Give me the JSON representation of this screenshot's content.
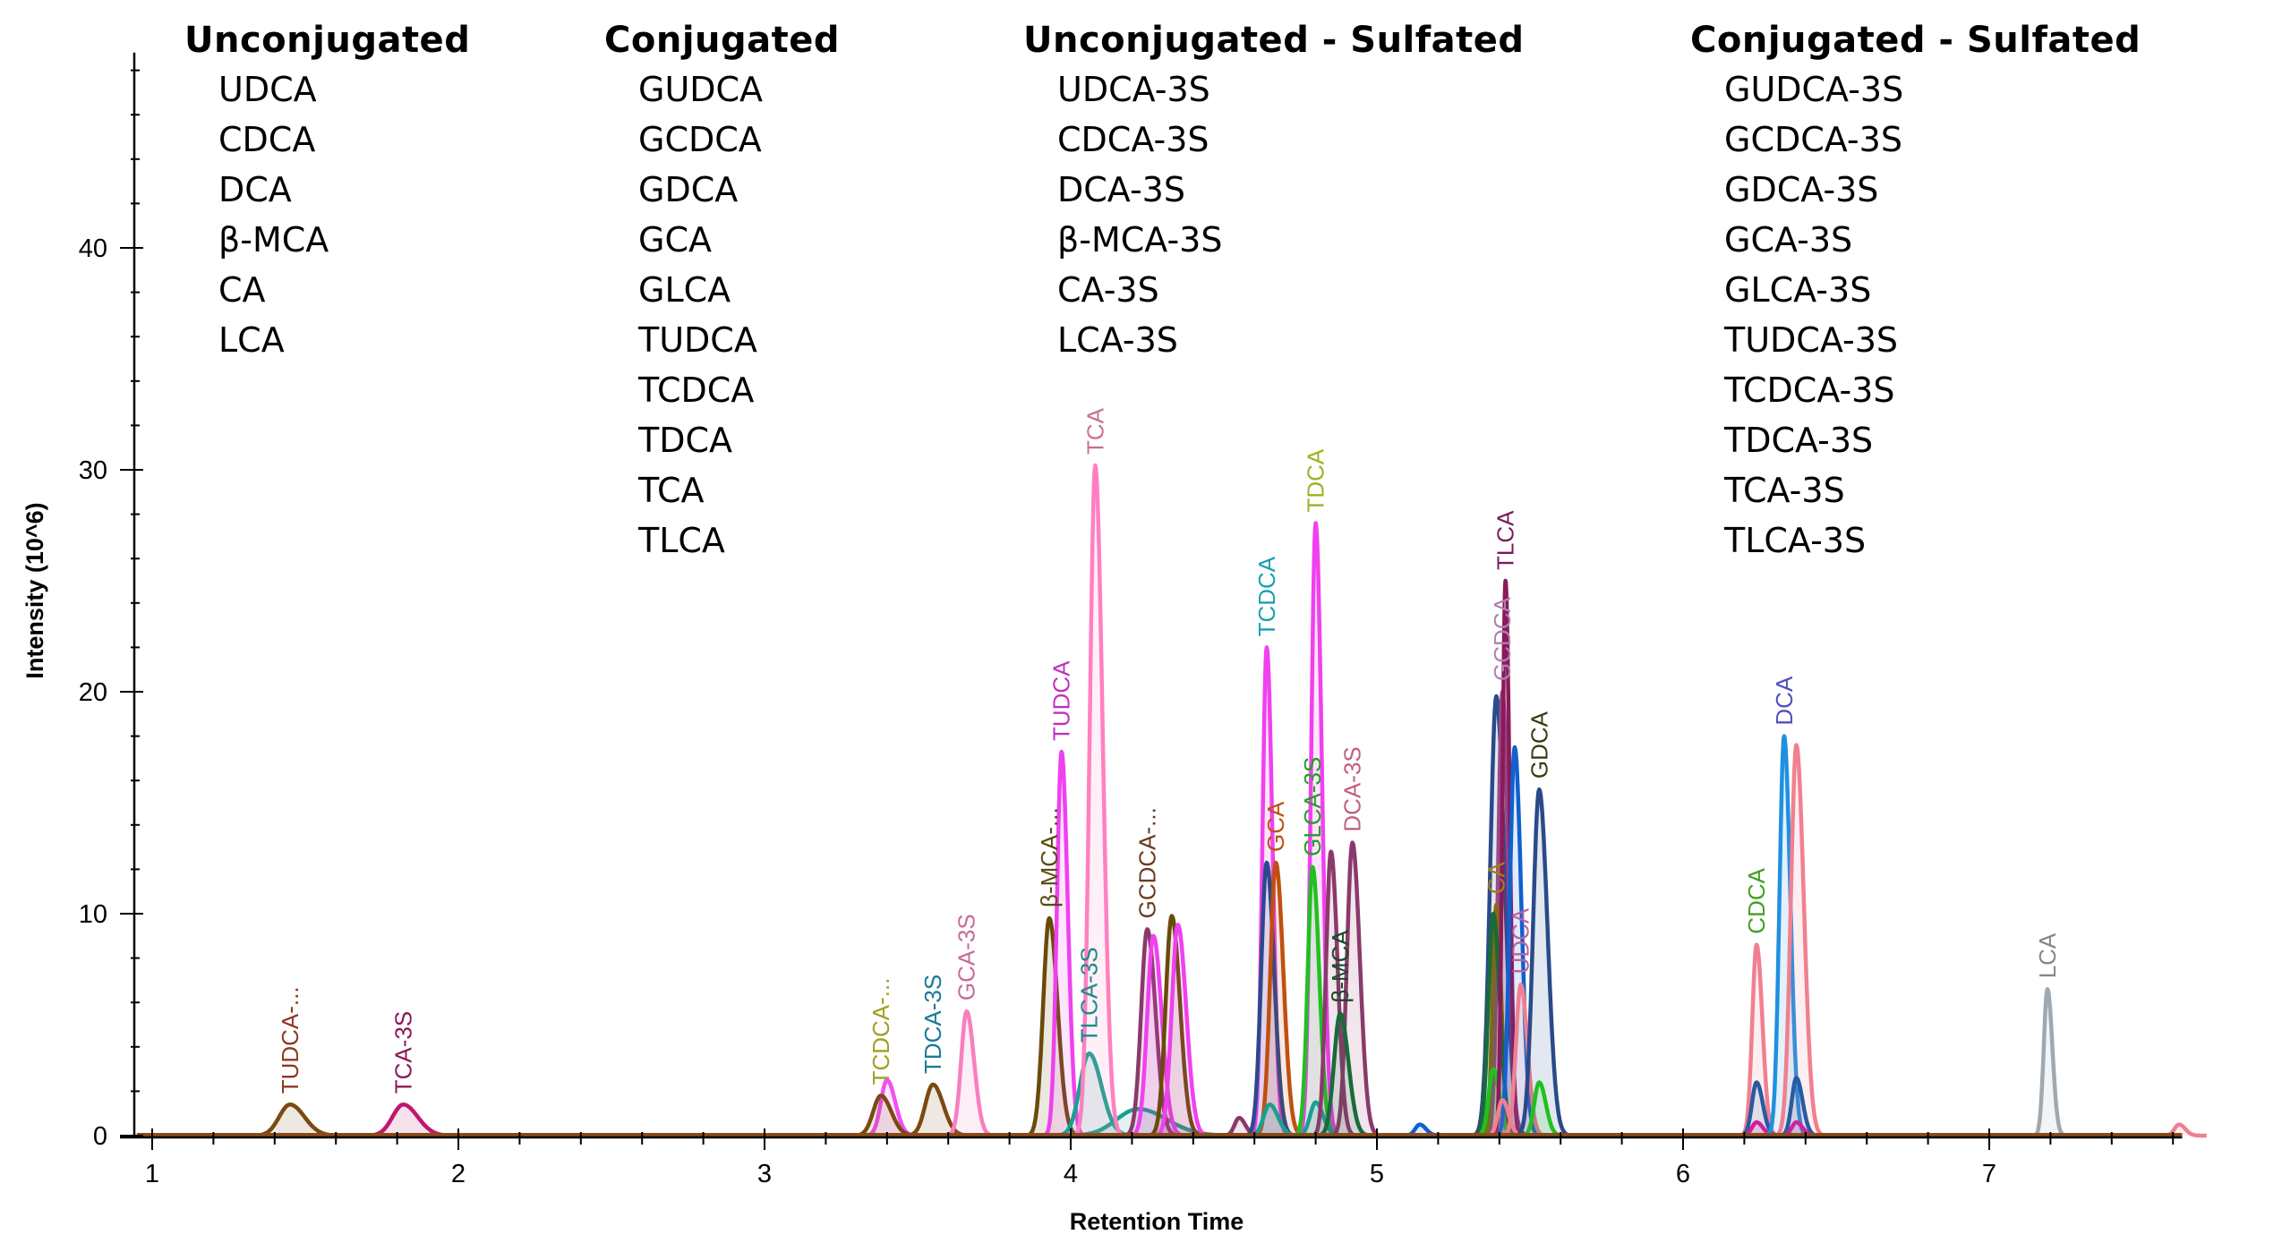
{
  "legend": [
    {
      "heading": "Unconjugated",
      "items": [
        "UDCA",
        "CDCA",
        "DCA",
        "β-MCA",
        "CA",
        "LCA"
      ]
    },
    {
      "heading": "Conjugated",
      "items": [
        "GUDCA",
        "GCDCA",
        "GDCA",
        "GCA",
        "GLCA",
        "TUDCA",
        "TCDCA",
        "TDCA",
        "TCA",
        "TLCA"
      ]
    },
    {
      "heading": "Unconjugated - Sulfated",
      "items": [
        "UDCA-3S",
        "CDCA-3S",
        "DCA-3S",
        "β-MCA-3S",
        "CA-3S",
        "LCA-3S"
      ]
    },
    {
      "heading": "Conjugated - Sulfated",
      "items": [
        "GUDCA-3S",
        "GCDCA-3S",
        "GDCA-3S",
        "GCA-3S",
        "GLCA-3S",
        "TUDCA-3S",
        "TCDCA-3S",
        "TDCA-3S",
        "TCA-3S",
        "TLCA-3S"
      ]
    }
  ],
  "chart_data": {
    "type": "line",
    "title": "",
    "xlabel": "Retention Time",
    "ylabel": "Intensity (10^6)",
    "xlim": [
      0.95,
      7.63
    ],
    "ylim": [
      0,
      48.8
    ],
    "x_ticks": [
      "1",
      "2",
      "3",
      "4",
      "5",
      "6",
      "7"
    ],
    "y_ticks": [
      "0",
      "10",
      "20",
      "30",
      "40"
    ],
    "grid": false,
    "legend": "none",
    "baseline_color": "#8b4a1a",
    "peaks": [
      {
        "rt": 1.45,
        "height": 1.4,
        "width": 0.035,
        "color": "#7a4a10",
        "label": "TUDCA-...",
        "label_color": "#8a3a20"
      },
      {
        "rt": 1.82,
        "height": 1.4,
        "width": 0.035,
        "color": "#c0176f",
        "label": "TCA-3S",
        "label_color": "#8b1a5a"
      },
      {
        "rt": 3.4,
        "height": 2.5,
        "width": 0.02,
        "color": "#f050f0",
        "label": "",
        "label_color": ""
      },
      {
        "rt": 3.38,
        "height": 1.8,
        "width": 0.025,
        "color": "#7a4a10",
        "label": "TCDCA-...",
        "label_color": "#a0a020"
      },
      {
        "rt": 3.55,
        "height": 2.3,
        "width": 0.025,
        "color": "#7a4a10",
        "label": "TDCA-3S",
        "label_color": "#1a7a9a"
      },
      {
        "rt": 3.66,
        "height": 5.6,
        "width": 0.018,
        "color": "#f77fbf",
        "label": "GCA-3S",
        "label_color": "#c86a9a"
      },
      {
        "rt": 3.93,
        "height": 9.8,
        "width": 0.02,
        "color": "#6a4a0a",
        "label": "β-MCA-...",
        "label_color": "#5a4a10"
      },
      {
        "rt": 3.97,
        "height": 17.3,
        "width": 0.015,
        "color": "#f040f0",
        "label": "TUDCA",
        "label_color": "#c030c0"
      },
      {
        "rt": 4.22,
        "height": 1.2,
        "width": 0.07,
        "color": "#1aa090",
        "label": "",
        "label_color": ""
      },
      {
        "rt": 4.06,
        "height": 3.7,
        "width": 0.03,
        "color": "#1aa090",
        "label": "TLCA-3S",
        "label_color": "#1a8a8a"
      },
      {
        "rt": 4.08,
        "height": 30.2,
        "width": 0.018,
        "color": "#ff80c0",
        "label": "TCA",
        "label_color": "#c87090"
      },
      {
        "rt": 4.25,
        "height": 9.3,
        "width": 0.02,
        "color": "#8a3a6a",
        "label": "GCDCA-...",
        "label_color": "#6a3a20"
      },
      {
        "rt": 4.27,
        "height": 9.0,
        "width": 0.02,
        "color": "#f040f0",
        "label": "",
        "label_color": ""
      },
      {
        "rt": 4.33,
        "height": 9.9,
        "width": 0.02,
        "color": "#6a4a0a",
        "label": "",
        "label_color": ""
      },
      {
        "rt": 4.35,
        "height": 9.5,
        "width": 0.02,
        "color": "#f040f0",
        "label": "",
        "label_color": ""
      },
      {
        "rt": 4.55,
        "height": 0.8,
        "width": 0.015,
        "color": "#8a3a6a",
        "label": "",
        "label_color": ""
      },
      {
        "rt": 4.64,
        "height": 22.0,
        "width": 0.014,
        "color": "#f040f0",
        "label": "TCDCA",
        "label_color": "#1aa0b0"
      },
      {
        "rt": 4.64,
        "height": 12.3,
        "width": 0.018,
        "color": "#2a4a8a",
        "label": "",
        "label_color": ""
      },
      {
        "rt": 4.67,
        "height": 12.3,
        "width": 0.018,
        "color": "#c05010",
        "label": "GCA",
        "label_color": "#c05010"
      },
      {
        "rt": 4.65,
        "height": 1.4,
        "width": 0.02,
        "color": "#1aa090",
        "label": "",
        "label_color": ""
      },
      {
        "rt": 4.8,
        "height": 27.6,
        "width": 0.015,
        "color": "#f040f0",
        "label": "TDCA",
        "label_color": "#a0b020"
      },
      {
        "rt": 4.79,
        "height": 12.1,
        "width": 0.016,
        "color": "#20c020",
        "label": "GLCA-3S",
        "label_color": "#20a020"
      },
      {
        "rt": 4.8,
        "height": 1.5,
        "width": 0.018,
        "color": "#1aa090",
        "label": "",
        "label_color": ""
      },
      {
        "rt": 4.85,
        "height": 12.8,
        "width": 0.016,
        "color": "#8a3a6a",
        "label": "",
        "label_color": ""
      },
      {
        "rt": 4.92,
        "height": 13.2,
        "width": 0.018,
        "color": "#8a3a6a",
        "label": "DCA-3S",
        "label_color": "#c06080"
      },
      {
        "rt": 4.88,
        "height": 5.5,
        "width": 0.02,
        "color": "#1a6a3a",
        "label": "β-MCA",
        "label_color": "#1a4a2a"
      },
      {
        "rt": 5.14,
        "height": 0.5,
        "width": 0.015,
        "color": "#1060d0",
        "label": "",
        "label_color": ""
      },
      {
        "rt": 5.39,
        "height": 19.8,
        "width": 0.02,
        "color": "#2a4a8a",
        "label": "",
        "label_color": ""
      },
      {
        "rt": 5.41,
        "height": 20.0,
        "width": 0.014,
        "color": "#9a4a8a",
        "label": "GCDCA",
        "label_color": "#b080b0"
      },
      {
        "rt": 5.39,
        "height": 10.4,
        "width": 0.012,
        "color": "#8a6a10",
        "label": "CA",
        "label_color": "#a08020"
      },
      {
        "rt": 5.38,
        "height": 10.0,
        "width": 0.016,
        "color": "#1a6a3a",
        "label": "",
        "label_color": ""
      },
      {
        "rt": 5.38,
        "height": 3.0,
        "width": 0.015,
        "color": "#20c020",
        "label": "",
        "label_color": ""
      },
      {
        "rt": 5.42,
        "height": 25.0,
        "width": 0.01,
        "color": "#8a1a5a",
        "label": "TLCA",
        "label_color": "#7a1a5a"
      },
      {
        "rt": 5.45,
        "height": 17.5,
        "width": 0.016,
        "color": "#1060d0",
        "label": "",
        "label_color": ""
      },
      {
        "rt": 5.47,
        "height": 6.8,
        "width": 0.016,
        "color": "#f08090",
        "label": "UDCA",
        "label_color": "#c060a0"
      },
      {
        "rt": 5.41,
        "height": 1.6,
        "width": 0.015,
        "color": "#f08090",
        "label": "",
        "label_color": ""
      },
      {
        "rt": 5.53,
        "height": 15.6,
        "width": 0.02,
        "color": "#2a4a8a",
        "label": "GDCA",
        "label_color": "#3a3a10"
      },
      {
        "rt": 5.53,
        "height": 2.4,
        "width": 0.016,
        "color": "#20c020",
        "label": "",
        "label_color": ""
      },
      {
        "rt": 6.24,
        "height": 8.6,
        "width": 0.014,
        "color": "#f08090",
        "label": "CDCA",
        "label_color": "#40a020"
      },
      {
        "rt": 6.24,
        "height": 2.4,
        "width": 0.015,
        "color": "#2a5aa0",
        "label": "",
        "label_color": ""
      },
      {
        "rt": 6.24,
        "height": 0.6,
        "width": 0.015,
        "color": "#d020a0",
        "label": "",
        "label_color": ""
      },
      {
        "rt": 6.33,
        "height": 18.0,
        "width": 0.015,
        "color": "#2090e0",
        "label": "DCA",
        "label_color": "#5050c0"
      },
      {
        "rt": 6.37,
        "height": 17.6,
        "width": 0.018,
        "color": "#f08090",
        "label": "",
        "label_color": ""
      },
      {
        "rt": 6.37,
        "height": 2.6,
        "width": 0.015,
        "color": "#2a5aa0",
        "label": "",
        "label_color": ""
      },
      {
        "rt": 6.37,
        "height": 0.6,
        "width": 0.015,
        "color": "#d020a0",
        "label": "",
        "label_color": ""
      },
      {
        "rt": 7.19,
        "height": 6.6,
        "width": 0.012,
        "color": "#a0a8b0",
        "label": "LCA",
        "label_color": "#808890"
      },
      {
        "rt": 7.62,
        "height": 0.5,
        "width": 0.015,
        "color": "#f08090",
        "label": "",
        "label_color": ""
      }
    ]
  }
}
